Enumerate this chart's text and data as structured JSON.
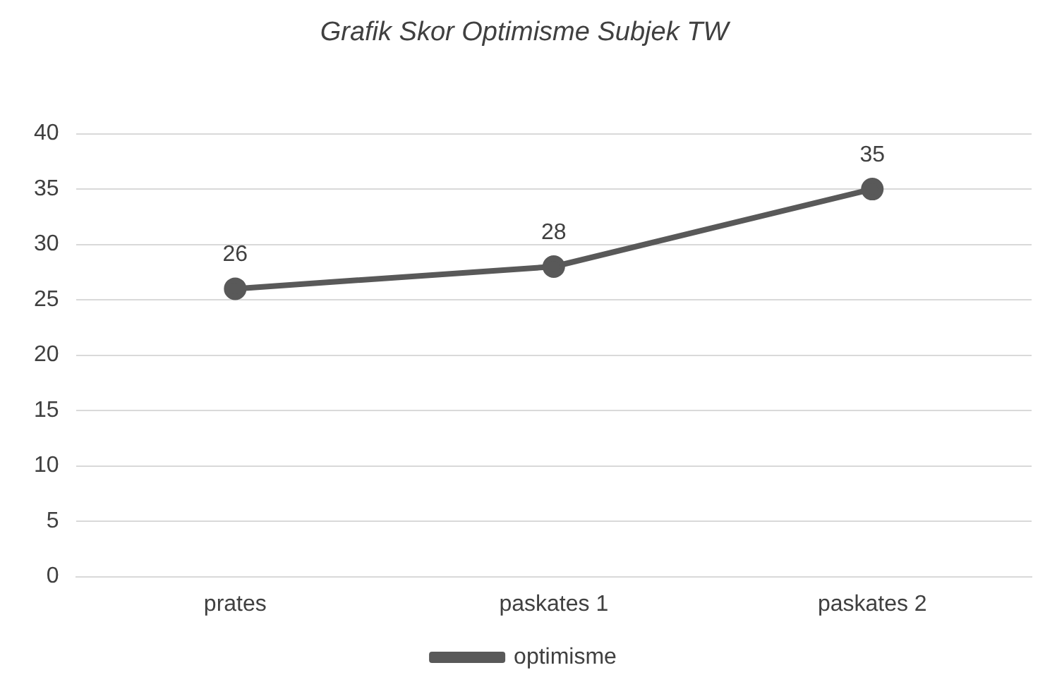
{
  "chart_data": {
    "type": "line",
    "title": "Grafik Skor Optimisme Subjek TW",
    "categories": [
      "prates",
      "paskates 1",
      "paskates 2"
    ],
    "series": [
      {
        "name": "optimisme",
        "color": "#595959",
        "values": [
          26,
          28,
          35
        ]
      }
    ],
    "ylim": [
      0,
      40
    ],
    "yticks": [
      0,
      5,
      10,
      15,
      20,
      25,
      30,
      35,
      40
    ],
    "grid": "y",
    "legend": "bottom",
    "marker": "circle",
    "line_style": "solid",
    "data_labels": true
  }
}
